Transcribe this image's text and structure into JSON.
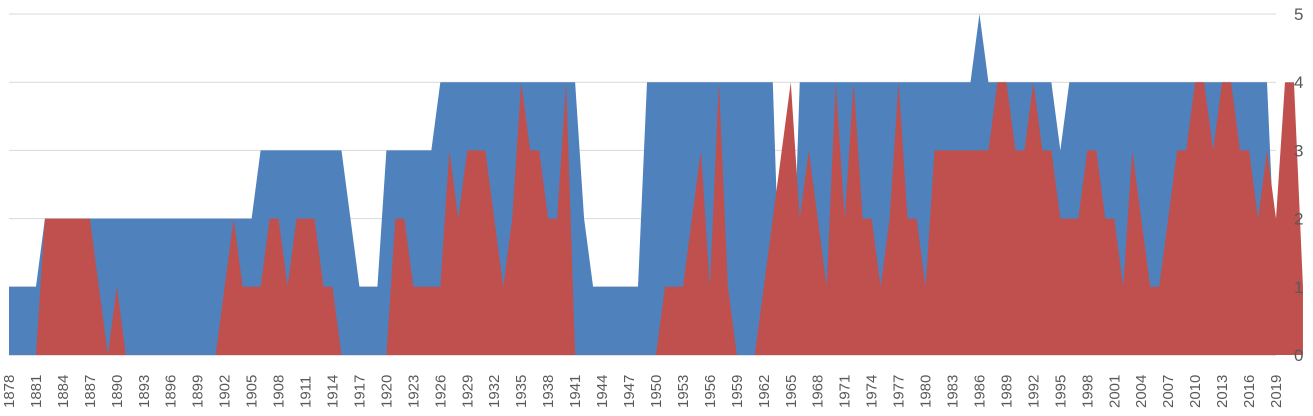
{
  "chart_data": {
    "type": "area",
    "x_start": 1878,
    "x_end": 2019,
    "xtick_labels": [
      "1878",
      "1881",
      "1884",
      "1887",
      "1890",
      "1893",
      "1896",
      "1899",
      "1902",
      "1905",
      "1908",
      "1911",
      "1914",
      "1917",
      "1920",
      "1923",
      "1926",
      "1929",
      "1932",
      "1935",
      "1938",
      "1941",
      "1944",
      "1947",
      "1950",
      "1953",
      "1956",
      "1959",
      "1962",
      "1965",
      "1968",
      "1971",
      "1974",
      "1977",
      "1980",
      "1983",
      "1986",
      "1989",
      "1992",
      "1995",
      "1998",
      "2001",
      "2004",
      "2007",
      "2010",
      "2013",
      "2016",
      "2019"
    ],
    "ylim": [
      0,
      5
    ],
    "ytick_labels": [
      "0",
      "1",
      "2",
      "3",
      "4",
      "5"
    ],
    "y_axis_side": "right",
    "grid": true,
    "legend": "none",
    "series": [
      {
        "color": "#4F81BD",
        "values": [
          1,
          1,
          1,
          1,
          2,
          2,
          2,
          2,
          2,
          2,
          2,
          2,
          2,
          2,
          2,
          2,
          2,
          2,
          2,
          2,
          2,
          2,
          2,
          2,
          2,
          2,
          2,
          2,
          3,
          3,
          3,
          3,
          3,
          3,
          3,
          3,
          3,
          3,
          2,
          1,
          1,
          1,
          3,
          3,
          3,
          3,
          3,
          3,
          4,
          4,
          4,
          4,
          4,
          4,
          4,
          4,
          4,
          4,
          4,
          4,
          4,
          4,
          4,
          4,
          2,
          1,
          1,
          1,
          1,
          1,
          1,
          4,
          4,
          4,
          4,
          4,
          4,
          4,
          4,
          4,
          4,
          4,
          4,
          4,
          4,
          4,
          0,
          0,
          4,
          4,
          4,
          4,
          4,
          4,
          4,
          4,
          4,
          4,
          4,
          4,
          4,
          4,
          4,
          4,
          4,
          4,
          4,
          4,
          5,
          4,
          4,
          4,
          4,
          4,
          4,
          4,
          4,
          3,
          4,
          4,
          4,
          4,
          4,
          4,
          4,
          4,
          4,
          4,
          4,
          4,
          4,
          4,
          4,
          4,
          4,
          4,
          4,
          4,
          4,
          4,
          4,
          1
        ]
      },
      {
        "color": "#C0504D",
        "values": [
          0,
          0,
          0,
          0,
          2,
          2,
          2,
          2,
          2,
          2,
          1,
          0,
          1,
          0,
          0,
          0,
          0,
          0,
          0,
          0,
          0,
          0,
          0,
          0,
          1,
          2,
          1,
          1,
          1,
          2,
          2,
          1,
          2,
          2,
          2,
          1,
          1,
          0,
          0,
          0,
          0,
          0,
          0,
          2,
          2,
          1,
          1,
          1,
          1,
          3,
          2,
          3,
          3,
          3,
          2,
          1,
          2,
          4,
          3,
          3,
          2,
          2,
          4,
          0,
          0,
          0,
          0,
          0,
          0,
          0,
          0,
          0,
          0,
          1,
          1,
          1,
          2,
          3,
          1,
          4,
          1,
          0,
          0,
          0,
          1,
          2,
          3,
          4,
          2,
          3,
          2,
          1,
          4,
          2,
          4,
          2,
          2,
          1,
          2,
          4,
          2,
          2,
          1,
          3,
          3,
          3,
          3,
          3,
          3,
          3,
          4,
          4,
          3,
          3,
          4,
          3,
          3,
          2,
          2,
          2,
          3,
          3,
          2,
          2,
          1,
          3,
          2,
          1,
          1,
          2,
          3,
          3,
          4,
          4,
          3,
          4,
          4,
          3,
          3,
          2,
          3,
          2,
          4,
          4,
          1
        ]
      }
    ]
  }
}
